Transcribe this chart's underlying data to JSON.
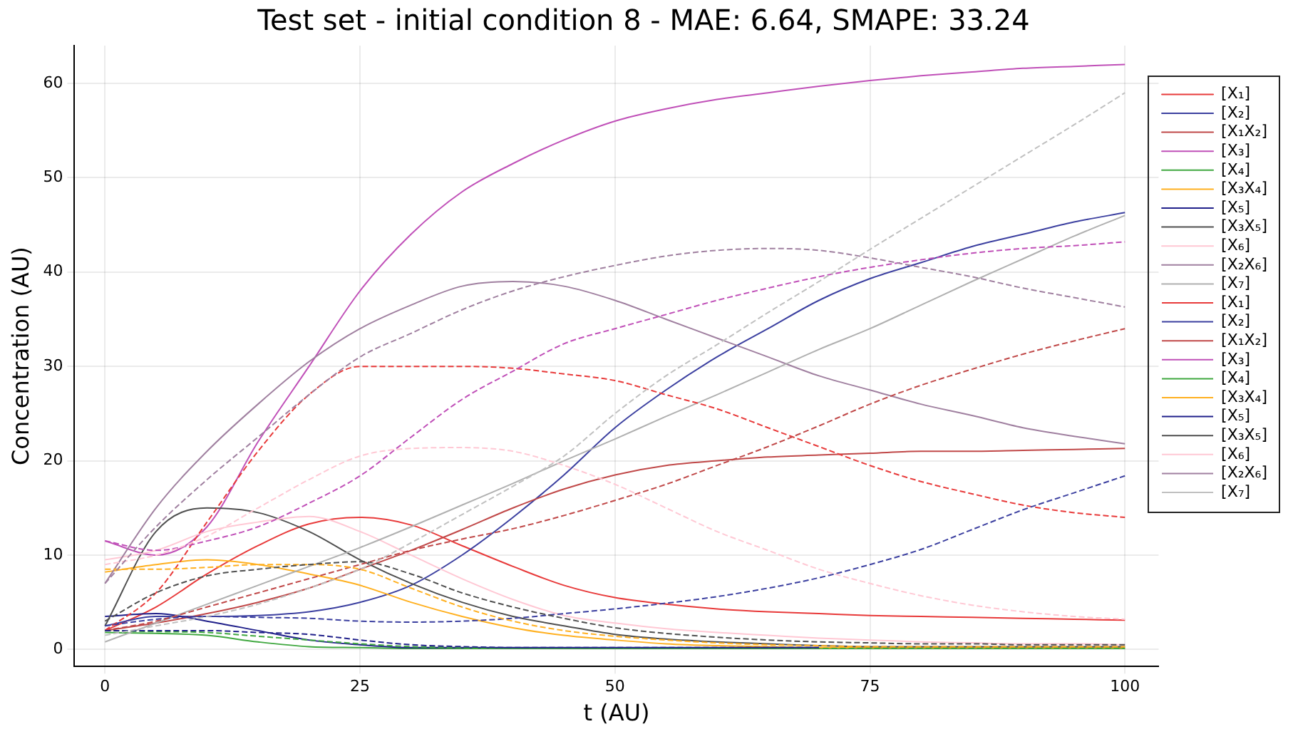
{
  "chart_data": {
    "type": "line",
    "title": "Test set - initial condition 8 - MAE: 6.64, SMAPE: 33.24",
    "xlabel": "t (AU)",
    "ylabel": "Concentration (AU)",
    "x": [
      0,
      5,
      10,
      15,
      20,
      25,
      30,
      35,
      40,
      45,
      50,
      55,
      60,
      65,
      70,
      75,
      80,
      85,
      90,
      95,
      100
    ],
    "xlim": [
      -3,
      103.3
    ],
    "ylim": [
      -1.8,
      64
    ],
    "xticks": [
      0,
      25,
      50,
      75,
      100
    ],
    "yticks": [
      0,
      10,
      20,
      30,
      40,
      50,
      60
    ],
    "grid": true,
    "legend": "top right",
    "marker": "none",
    "series": [
      {
        "name": "[X₁]",
        "color": "#e83a3a",
        "line_style": "solid",
        "values": [
          2,
          4.5,
          8,
          11,
          13.3,
          14,
          13.2,
          11,
          8.8,
          6.8,
          5.5,
          4.8,
          4.3,
          4,
          3.8,
          3.6,
          3.5,
          3.4,
          3.3,
          3.2,
          3.1
        ]
      },
      {
        "name": "[X₂]",
        "color": "#3c40a0",
        "line_style": "solid",
        "values": [
          2.5,
          3.5,
          3.5,
          3.6,
          4,
          5,
          6.8,
          10,
          14,
          18.5,
          23.5,
          27.5,
          31,
          34,
          37,
          39.3,
          41,
          42.7,
          44,
          45.3,
          46.3
        ]
      },
      {
        "name": "[X₁X₂]",
        "color": "#c04848",
        "line_style": "solid",
        "values": [
          2,
          2.8,
          3.8,
          5,
          6.5,
          8.5,
          10.5,
          12.7,
          15,
          17,
          18.5,
          19.5,
          20,
          20.4,
          20.6,
          20.8,
          21,
          21,
          21.1,
          21.2,
          21.3
        ]
      },
      {
        "name": "[X₃]",
        "color": "#c050b8",
        "line_style": "solid",
        "values": [
          11.5,
          10,
          13,
          22,
          30,
          38,
          44,
          48.5,
          51.5,
          54,
          56,
          57.3,
          58.3,
          59,
          59.7,
          60.3,
          60.8,
          61.2,
          61.6,
          61.8,
          62
        ]
      },
      {
        "name": "[X₄]",
        "color": "#40a840",
        "line_style": "solid",
        "values": [
          1.8,
          1.7,
          1.5,
          0.8,
          0.3,
          0.2,
          0.1,
          0.1,
          0.1,
          0.1,
          0.1,
          0.1,
          0.1,
          0.1,
          0.1,
          0.1,
          0.1,
          0.1,
          0.1,
          0.1,
          0.1
        ]
      },
      {
        "name": "[X₃X₄]",
        "color": "#ffb020",
        "line_style": "solid",
        "values": [
          8.2,
          9,
          9.5,
          9,
          8,
          6.8,
          5,
          3.5,
          2.3,
          1.5,
          1,
          0.6,
          0.4,
          0.3,
          0.2,
          0.2,
          0.2,
          0.2,
          0.2,
          0.2,
          0.2
        ]
      },
      {
        "name": "[X₅]",
        "color": "#20208a",
        "line_style": "solid",
        "values": [
          3.5,
          3.8,
          3,
          2,
          1,
          0.5,
          0.2,
          0.2,
          0.2,
          0.2,
          0.2,
          0.2,
          0.2,
          0.2,
          0.2,
          null,
          null,
          null,
          null,
          null,
          null
        ]
      },
      {
        "name": "[X₃X₅]",
        "color": "#505050",
        "line_style": "solid",
        "values": [
          2.5,
          12.5,
          15,
          14.5,
          12.5,
          9.5,
          7,
          5,
          3.5,
          2.5,
          1.6,
          1.1,
          0.8,
          0.6,
          0.4,
          0.3,
          0.3,
          0.3,
          0.3,
          0.3,
          0.3
        ]
      },
      {
        "name": "[X₆]",
        "color": "#ffc8d4",
        "line_style": "solid",
        "values": [
          9.5,
          10.5,
          12.5,
          13.5,
          14.1,
          12.5,
          10,
          7.5,
          5.3,
          3.6,
          2.8,
          2.2,
          1.8,
          1.5,
          1.2,
          1,
          0.8,
          0.7,
          0.6,
          0.6,
          0.5
        ]
      },
      {
        "name": "[X₂X₆]",
        "color": "#a080a0",
        "line_style": "solid",
        "values": [
          7,
          15,
          21,
          26,
          30.5,
          34,
          36.5,
          38.5,
          39,
          38.5,
          37,
          35,
          33,
          31,
          29,
          27.5,
          26,
          24.8,
          23.5,
          22.6,
          21.8
        ]
      },
      {
        "name": "[X₇]",
        "color": "#b0b0b0",
        "line_style": "solid",
        "values": [
          0.8,
          2.8,
          4.8,
          6.8,
          8.8,
          10.8,
          13,
          15.3,
          17.6,
          20,
          22.3,
          24.7,
          27,
          29.4,
          31.8,
          34,
          36.5,
          39,
          41.4,
          43.8,
          46
        ]
      },
      {
        "name": "[X₁]",
        "color": "#e83a3a",
        "line_style": "dashed",
        "values": [
          2,
          6,
          13.5,
          21,
          27,
          30,
          30,
          30,
          29.8,
          29.2,
          28.5,
          27,
          25.5,
          23.5,
          21.5,
          19.5,
          17.8,
          16.5,
          15.3,
          14.5,
          14
        ]
      },
      {
        "name": "[X₂]",
        "color": "#3c40a0",
        "line_style": "dashed",
        "values": [
          2.5,
          3.2,
          3.5,
          3.4,
          3.3,
          3,
          2.9,
          3,
          3.3,
          3.8,
          4.3,
          4.9,
          5.6,
          6.5,
          7.6,
          9,
          10.6,
          12.7,
          14.8,
          16.6,
          18.4
        ]
      },
      {
        "name": "[X₁X₂]",
        "color": "#c04848",
        "line_style": "dashed",
        "values": [
          2,
          3,
          4.5,
          6,
          7.5,
          9,
          10.5,
          11.7,
          12.8,
          14.2,
          15.8,
          17.5,
          19.5,
          21.5,
          23.7,
          26,
          28,
          29.7,
          31.3,
          32.7,
          34
        ]
      },
      {
        "name": "[X₃]",
        "color": "#c050b8",
        "line_style": "dashed",
        "values": [
          11.5,
          10.5,
          11.5,
          13,
          15.5,
          18.4,
          22.5,
          26.5,
          29.5,
          32.4,
          34,
          35.5,
          37,
          38.3,
          39.5,
          40.5,
          41.3,
          42,
          42.5,
          42.8,
          43.2
        ]
      },
      {
        "name": "[X₄]",
        "color": "#40a840",
        "line_style": "dashed",
        "values": [
          2,
          1.9,
          1.8,
          1.4,
          1,
          0.6,
          0.3,
          0.2,
          0.1,
          0.1,
          0.1,
          0.1,
          0.1,
          0.1,
          0.1,
          0.1,
          0.1,
          0.1,
          0.1,
          0.1,
          0.1
        ]
      },
      {
        "name": "[X₃X₄]",
        "color": "#ffb020",
        "line_style": "dashed",
        "values": [
          8.5,
          8.5,
          8.7,
          9,
          9,
          8.5,
          6.5,
          4.5,
          3,
          2,
          1.4,
          1,
          0.7,
          0.5,
          0.4,
          0.3,
          0.3,
          0.3,
          0.3,
          0.3,
          0.3
        ]
      },
      {
        "name": "[X₅]",
        "color": "#20208a",
        "line_style": "dashed",
        "values": [
          2,
          2,
          2,
          1.8,
          1.6,
          1,
          0.5,
          0.3,
          0.2,
          0.2,
          0.2,
          0.2,
          0.2,
          0.2,
          0.2,
          null,
          null,
          null,
          null,
          null,
          null
        ]
      },
      {
        "name": "[X₃X₅]",
        "color": "#505050",
        "line_style": "dashed",
        "values": [
          3,
          6,
          7.8,
          8.5,
          9,
          9.3,
          8,
          6,
          4.5,
          3.3,
          2.3,
          1.7,
          1.3,
          1,
          0.8,
          0.7,
          0.6,
          0.6,
          0.5,
          0.5,
          0.5
        ]
      },
      {
        "name": "[X₆]",
        "color": "#ffc8d4",
        "line_style": "dashed",
        "values": [
          9,
          10,
          12,
          15,
          18,
          20.5,
          21.3,
          21.4,
          21,
          19.5,
          17.5,
          15,
          12.5,
          10.5,
          8.5,
          7,
          5.7,
          4.7,
          4,
          3.5,
          3.2
        ]
      },
      {
        "name": "[X₂X₆]",
        "color": "#a080a0",
        "line_style": "dashed",
        "values": [
          7,
          13,
          18,
          22.5,
          27,
          31,
          33.5,
          36,
          38,
          39.5,
          40.7,
          41.7,
          42.3,
          42.5,
          42.3,
          41.5,
          40.5,
          39.5,
          38.3,
          37.3,
          36.3
        ]
      },
      {
        "name": "[X₇]",
        "color": "#c0c0c0",
        "line_style": "dashed",
        "values": [
          1.5,
          2.5,
          3.5,
          4.8,
          6.5,
          8.5,
          11.3,
          14.3,
          17.3,
          20.5,
          25,
          29,
          32.3,
          35.7,
          39,
          42.4,
          45.7,
          49,
          52.3,
          55.6,
          59
        ]
      }
    ]
  }
}
